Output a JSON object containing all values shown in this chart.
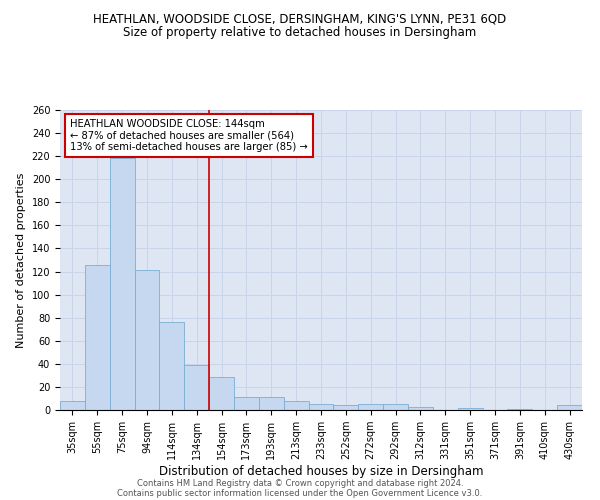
{
  "title": "HEATHLAN, WOODSIDE CLOSE, DERSINGHAM, KING'S LYNN, PE31 6QD",
  "subtitle": "Size of property relative to detached houses in Dersingham",
  "xlabel": "Distribution of detached houses by size in Dersingham",
  "ylabel": "Number of detached properties",
  "categories": [
    "35sqm",
    "55sqm",
    "75sqm",
    "94sqm",
    "114sqm",
    "134sqm",
    "154sqm",
    "173sqm",
    "193sqm",
    "213sqm",
    "233sqm",
    "252sqm",
    "272sqm",
    "292sqm",
    "312sqm",
    "331sqm",
    "351sqm",
    "371sqm",
    "391sqm",
    "410sqm",
    "430sqm"
  ],
  "values": [
    8,
    126,
    218,
    121,
    76,
    39,
    29,
    11,
    11,
    8,
    5,
    4,
    5,
    5,
    3,
    0,
    2,
    0,
    1,
    0,
    4
  ],
  "bar_color": "#c5d8f0",
  "bar_edgecolor": "#7aafd4",
  "grid_color": "#c8d4e8",
  "background_color": "#dde6f2",
  "vline_color": "#cc0000",
  "vline_pos": 5.5,
  "annotation_title": "HEATHLAN WOODSIDE CLOSE: 144sqm",
  "annotation_line1": "← 87% of detached houses are smaller (564)",
  "annotation_line2": "13% of semi-detached houses are larger (85) →",
  "annotation_box_facecolor": "#ffffff",
  "annotation_box_edgecolor": "#cc0000",
  "ylim": [
    0,
    260
  ],
  "yticks": [
    0,
    20,
    40,
    60,
    80,
    100,
    120,
    140,
    160,
    180,
    200,
    220,
    240,
    260
  ],
  "footer1": "Contains HM Land Registry data © Crown copyright and database right 2024.",
  "footer2": "Contains public sector information licensed under the Open Government Licence v3.0.",
  "title_fontsize": 8.5,
  "subtitle_fontsize": 8.5,
  "tick_fontsize": 7,
  "ylabel_fontsize": 8,
  "xlabel_fontsize": 8.5
}
